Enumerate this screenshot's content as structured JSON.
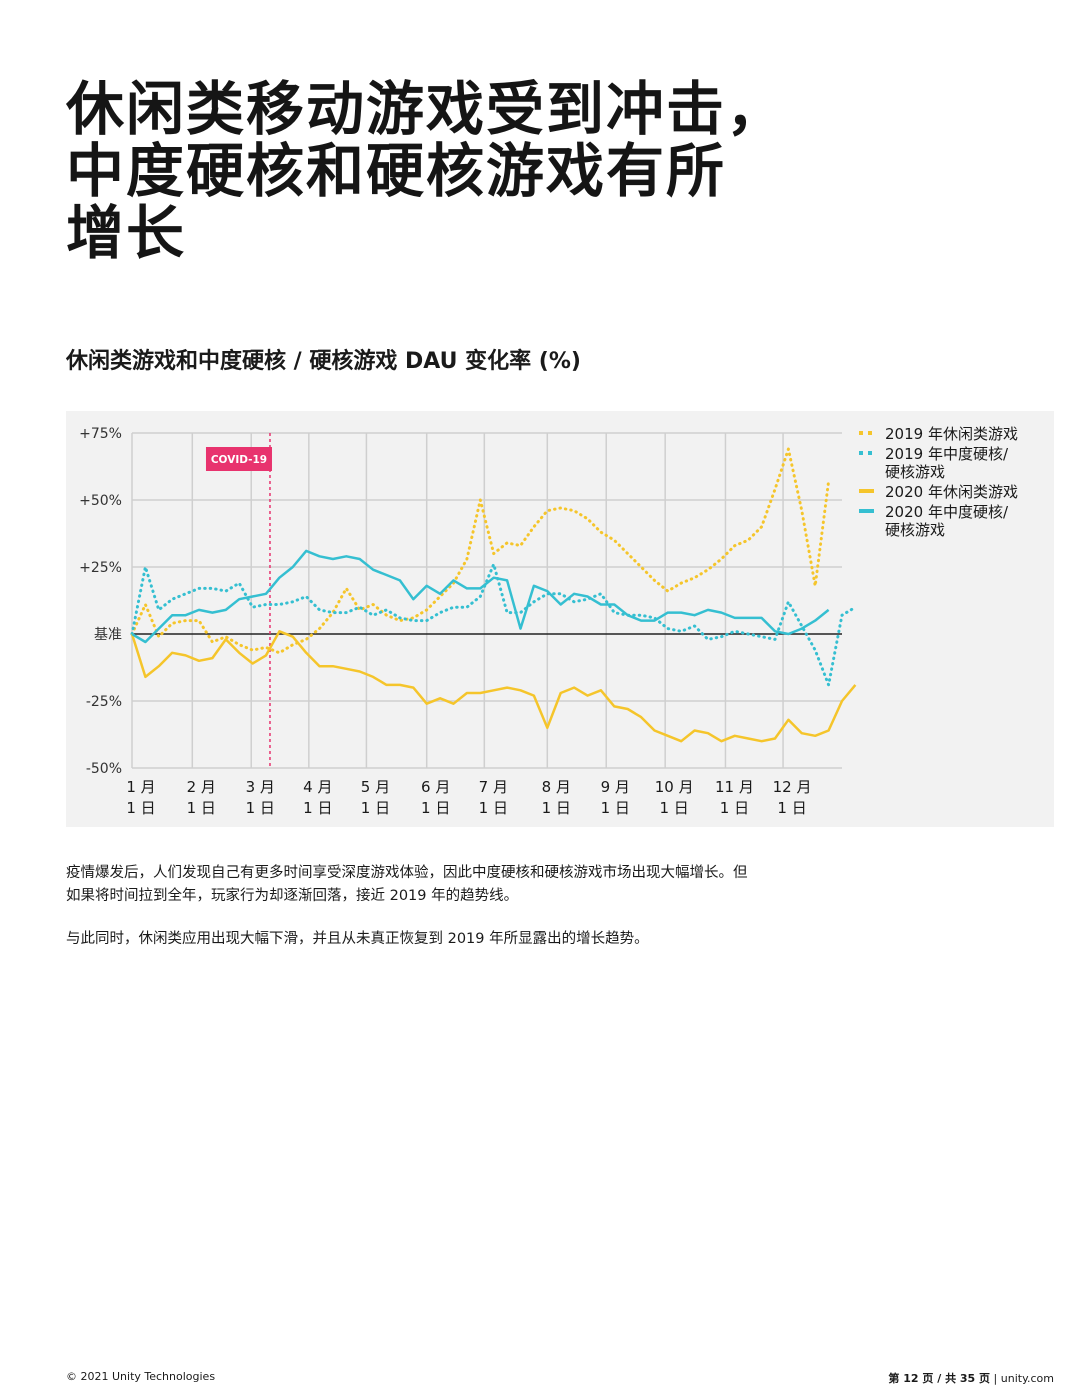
{
  "page": {
    "headline": [
      "休闲类移动游戏受到冲击，",
      "中度硬核和硬核游戏有所",
      "增长"
    ],
    "chart_heading": "休闲类游戏和中度硬核 / 硬核游戏 DAU 变化率 (%)",
    "paragraphs": [
      "疫情爆发后，人们发现自己有更多时间享受深度游戏体验，因此中度硬核和硬核游戏市场出现大幅增长。但如果将时间拉到全年，玩家行为却逐渐回落，接近 2019 年的趋势线。",
      "与此同时，休闲类应用出现大幅下滑，并且从未真正恢复到 2019 年所显露出的增长趋势。"
    ],
    "footer_left": "© 2021 Unity Technologies",
    "footer_page": "第 12 页 / 共 35 页",
    "footer_sep": " | ",
    "footer_site": "unity.com"
  },
  "chart_data": {
    "type": "line",
    "title": "休闲类游戏和中度硬核 / 硬核游戏 DAU 变化率 (%)",
    "ylim": [
      -50,
      75
    ],
    "xlim": [
      0,
      53
    ],
    "yticks": [
      {
        "value": 75,
        "label": "+75%"
      },
      {
        "value": 50,
        "label": "+50%"
      },
      {
        "value": 25,
        "label": "+25%"
      },
      {
        "value": 0,
        "label": "基准"
      },
      {
        "value": -25,
        "label": "-25%"
      },
      {
        "value": -50,
        "label": "-50%"
      }
    ],
    "xticks": [
      {
        "week": 0,
        "line1": "1 月",
        "line2": "1 日"
      },
      {
        "week": 4.5,
        "line1": "2 月",
        "line2": "1 日"
      },
      {
        "week": 8.9,
        "line1": "3 月",
        "line2": "1 日"
      },
      {
        "week": 13.2,
        "line1": "4 月",
        "line2": "1 日"
      },
      {
        "week": 17.5,
        "line1": "5 月",
        "line2": "1 日"
      },
      {
        "week": 22,
        "line1": "6 月",
        "line2": "1 日"
      },
      {
        "week": 26.3,
        "line1": "7 月",
        "line2": "1 日"
      },
      {
        "week": 31,
        "line1": "8 月",
        "line2": "1 日"
      },
      {
        "week": 35.4,
        "line1": "9 月",
        "line2": "1 日"
      },
      {
        "week": 39.8,
        "line1": "10 月",
        "line2": "1 日"
      },
      {
        "week": 44.3,
        "line1": "11 月",
        "line2": "1 日"
      },
      {
        "week": 48.6,
        "line1": "12 月",
        "line2": "1 日"
      }
    ],
    "grid": true,
    "baseline": 0,
    "annotation": {
      "label": "COVID-19",
      "week": 10.3,
      "color": "#e8336e"
    },
    "legend_position": "right",
    "series": [
      {
        "name": "2019 年休闲类游戏",
        "color": "#f5c52b",
        "dash": true,
        "values": [
          0,
          11,
          -1,
          4,
          5,
          5,
          -3,
          -1,
          -4,
          -6,
          -5,
          -7,
          -4,
          -2,
          2,
          8,
          17,
          9,
          11,
          7,
          5,
          6,
          9,
          14,
          19,
          28,
          50,
          30,
          34,
          33,
          40,
          46,
          47,
          46,
          43,
          38,
          35,
          30,
          25,
          20,
          16,
          19,
          21,
          24,
          28,
          33,
          35,
          40,
          54,
          69,
          46,
          18,
          57
        ]
      },
      {
        "name": "2019 年中度硬核/硬核游戏",
        "color": "#35bfd1",
        "dash": true,
        "values": [
          0,
          25,
          9,
          13,
          15,
          17,
          17,
          16,
          19,
          10,
          11,
          11,
          12,
          14,
          9,
          8,
          8,
          10,
          7,
          9,
          6,
          5,
          5,
          8,
          10,
          10,
          14,
          26,
          8,
          8,
          12,
          15,
          15,
          12,
          13,
          15,
          8,
          7,
          7,
          6,
          2,
          1,
          3,
          -2,
          -1,
          1,
          0,
          -1,
          -2,
          12,
          3,
          -6,
          -19,
          7,
          10
        ]
      },
      {
        "name": "2020 年休闲类游戏",
        "color": "#f5c52b",
        "dash": false,
        "values": [
          0,
          -16,
          -12,
          -7,
          -8,
          -10,
          -9,
          -2,
          -7,
          -11,
          -8,
          1,
          -1,
          -7,
          -12,
          -12,
          -13,
          -14,
          -16,
          -19,
          -19,
          -20,
          -26,
          -24,
          -26,
          -22,
          -22,
          -21,
          -20,
          -21,
          -23,
          -35,
          -22,
          -20,
          -23,
          -21,
          -27,
          -28,
          -31,
          -36,
          -38,
          -40,
          -36,
          -37,
          -40,
          -38,
          -39,
          -40,
          -39,
          -32,
          -37,
          -38,
          -36,
          -25,
          -19
        ]
      },
      {
        "name": "2020 年中度硬核/硬核游戏",
        "color": "#35bfd1",
        "dash": false,
        "values": [
          0,
          -3,
          2,
          7,
          7,
          9,
          8,
          9,
          13,
          14,
          15,
          21,
          25,
          31,
          29,
          28,
          29,
          28,
          24,
          22,
          20,
          13,
          18,
          15,
          20,
          17,
          17,
          21,
          20,
          2,
          18,
          16,
          11,
          15,
          14,
          11,
          11,
          7,
          5,
          5,
          8,
          8,
          7,
          9,
          8,
          6,
          6,
          6,
          1,
          0,
          2,
          5,
          9
        ]
      }
    ]
  }
}
